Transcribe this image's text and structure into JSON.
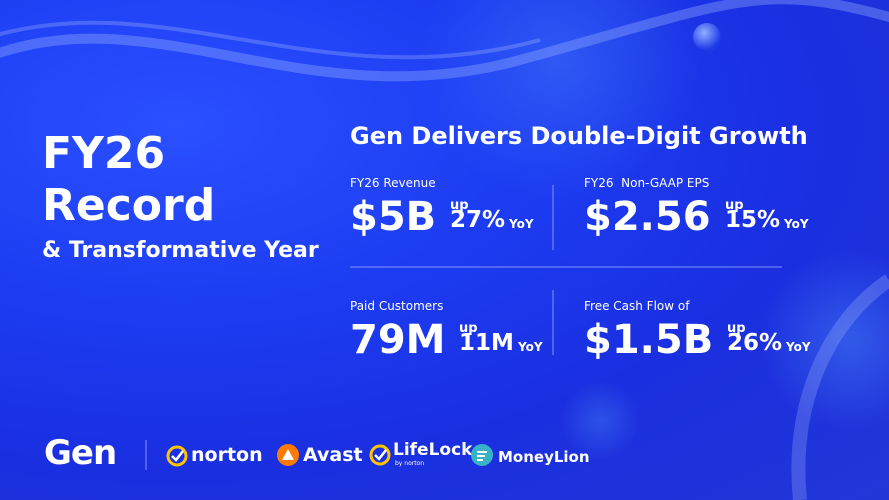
{
  "hero": {
    "line1": "FY26",
    "line2": "Record",
    "line3": "& Transformative Year"
  },
  "headline": "Gen Delivers Double-Digit Growth",
  "metrics": [
    {
      "label": "FY26 Revenue",
      "value": "$5B",
      "up": "up",
      "change": "27%",
      "suffix": "YoY"
    },
    {
      "label": "FY26  Non-GAAP EPS",
      "value": "$2.56",
      "up": "up",
      "change": "15%",
      "suffix": "YoY"
    },
    {
      "label": "Paid Customers",
      "value": "79M",
      "up": "up",
      "change": "11M",
      "suffix": "YoY"
    },
    {
      "label": "Free Cash Flow of",
      "value": "$1.5B",
      "up": "up",
      "change": "26%",
      "suffix": "YoY"
    }
  ],
  "brands": {
    "gen": "Gen",
    "norton": "norton",
    "avast": "Avast",
    "lifelock": "LifeLock",
    "lifelock_sub": "by norton",
    "moneylion": "MoneyLion"
  }
}
